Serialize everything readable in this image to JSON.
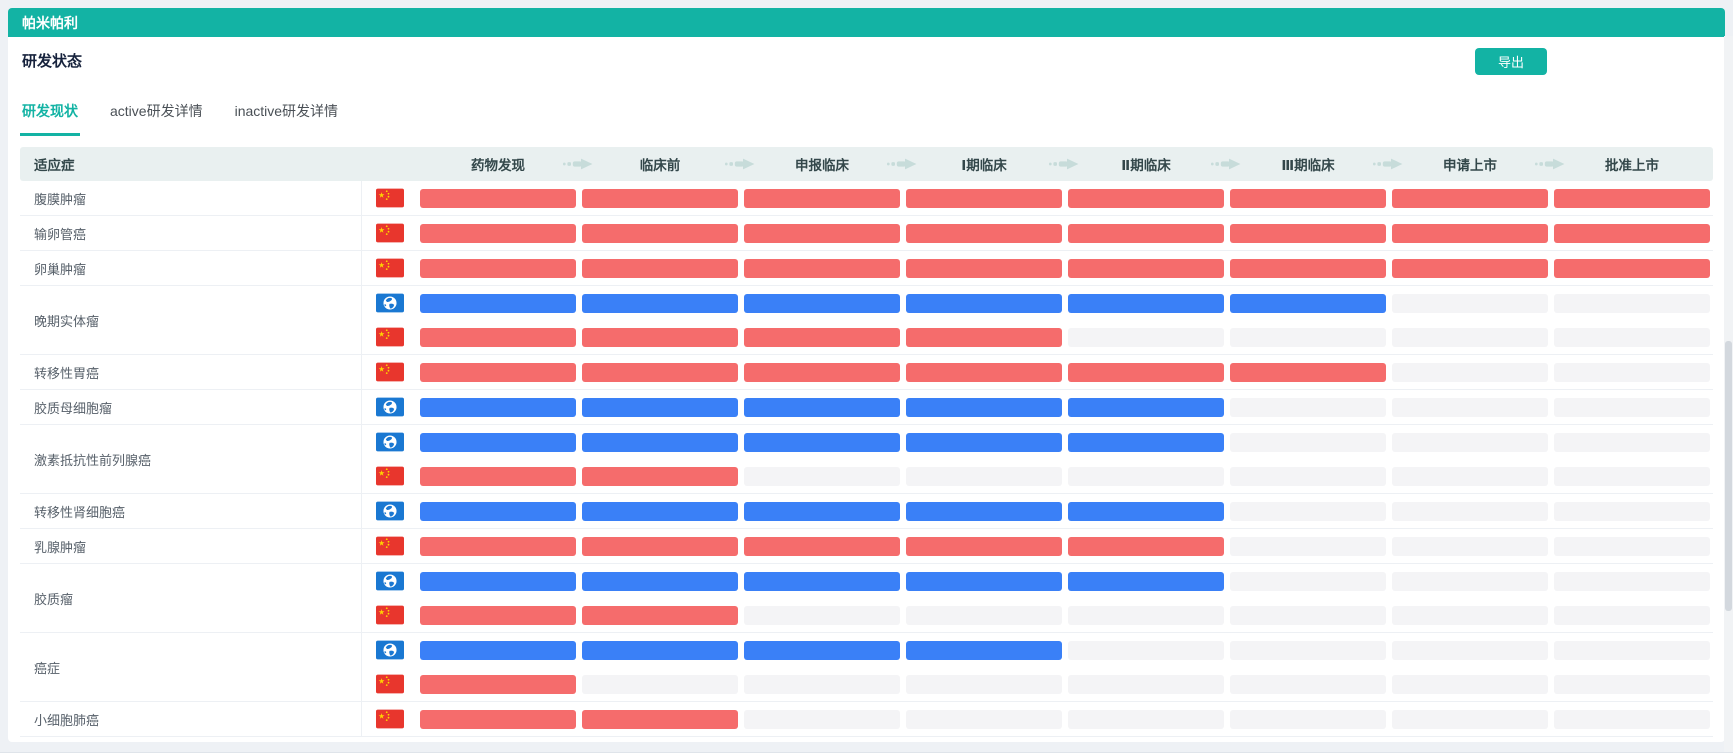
{
  "title_bar": {
    "title": "帕米帕利"
  },
  "toolbar": {
    "section_title": "研发状态",
    "export_label": "导出"
  },
  "tabs": [
    {
      "key": "rd-status",
      "label": "研发现状",
      "active": true
    },
    {
      "key": "active-detail",
      "label": "active研发详情",
      "active": false
    },
    {
      "key": "inactive-detail",
      "label": "inactive研发详情",
      "active": false
    }
  ],
  "table": {
    "indication_header": "适应症",
    "stages": [
      "药物发现",
      "临床前",
      "申报临床",
      "Ⅰ期临床",
      "Ⅱ期临床",
      "Ⅲ期临床",
      "申请上市",
      "批准上市"
    ],
    "rows": [
      {
        "indication": "腹膜肿瘤",
        "entries": [
          {
            "region": "china",
            "stages_completed": 8
          }
        ]
      },
      {
        "indication": "输卵管癌",
        "entries": [
          {
            "region": "china",
            "stages_completed": 8
          }
        ]
      },
      {
        "indication": "卵巢肿瘤",
        "entries": [
          {
            "region": "china",
            "stages_completed": 8
          }
        ]
      },
      {
        "indication": "晚期实体瘤",
        "entries": [
          {
            "region": "global",
            "stages_completed": 6
          },
          {
            "region": "china",
            "stages_completed": 4
          }
        ]
      },
      {
        "indication": "转移性胃癌",
        "entries": [
          {
            "region": "china",
            "stages_completed": 6
          }
        ]
      },
      {
        "indication": "胶质母细胞瘤",
        "entries": [
          {
            "region": "global",
            "stages_completed": 5
          }
        ]
      },
      {
        "indication": "激素抵抗性前列腺癌",
        "entries": [
          {
            "region": "global",
            "stages_completed": 5
          },
          {
            "region": "china",
            "stages_completed": 2
          }
        ]
      },
      {
        "indication": "转移性肾细胞癌",
        "entries": [
          {
            "region": "global",
            "stages_completed": 5
          }
        ]
      },
      {
        "indication": "乳腺肿瘤",
        "entries": [
          {
            "region": "china",
            "stages_completed": 5
          }
        ]
      },
      {
        "indication": "胶质瘤",
        "entries": [
          {
            "region": "global",
            "stages_completed": 5
          },
          {
            "region": "china",
            "stages_completed": 2
          }
        ]
      },
      {
        "indication": "癌症",
        "entries": [
          {
            "region": "global",
            "stages_completed": 4
          },
          {
            "region": "china",
            "stages_completed": 1
          }
        ]
      },
      {
        "indication": "小细胞肺癌",
        "entries": [
          {
            "region": "china",
            "stages_completed": 2
          }
        ]
      }
    ]
  },
  "colors": {
    "accent_teal": "#13b3a4",
    "china_bar_red": "#f56c6c",
    "global_bar_blue": "#3a80f7",
    "empty_bar_gray": "#f4f4f6",
    "header_bg": "#e9f0f0",
    "page_bg": "#eef1f5",
    "arrow": "#c7dcda"
  }
}
